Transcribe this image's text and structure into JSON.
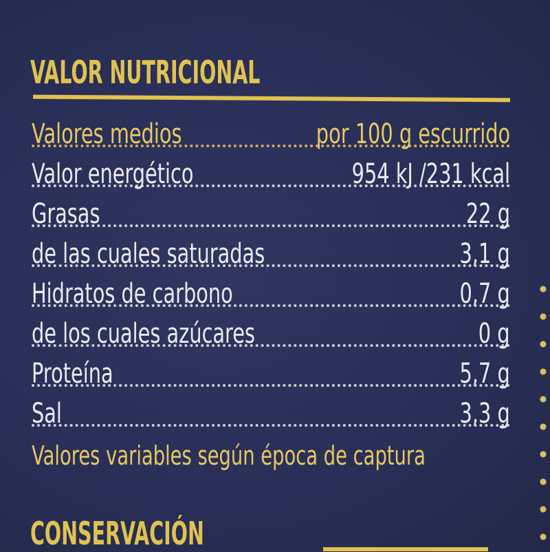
{
  "label": {
    "title": "VALOR NUTRICIONAL",
    "rows": [
      {
        "label": "Valores medios",
        "value": "por 100 g escurrido",
        "highlight": true
      },
      {
        "label": "Valor energético",
        "value": "954 kJ /231 kcal"
      },
      {
        "label": "Grasas",
        "value": "22 g"
      },
      {
        "label": "de las cuales saturadas",
        "value": "3,1 g"
      },
      {
        "label": "Hidratos de carbono",
        "value": "0,7 g"
      },
      {
        "label": "de los cuales azúcares",
        "value": "0 g"
      },
      {
        "label": "Proteína",
        "value": "5,7 g"
      },
      {
        "label": "Sal",
        "value": "3,3 g"
      }
    ],
    "note": "Valores variables según época de captura",
    "next_section_title": "CONSERVACIÓN"
  },
  "colors": {
    "background": "#2a2f58",
    "accent_yellow": "#e0c250",
    "text_white": "#ebebf0"
  }
}
